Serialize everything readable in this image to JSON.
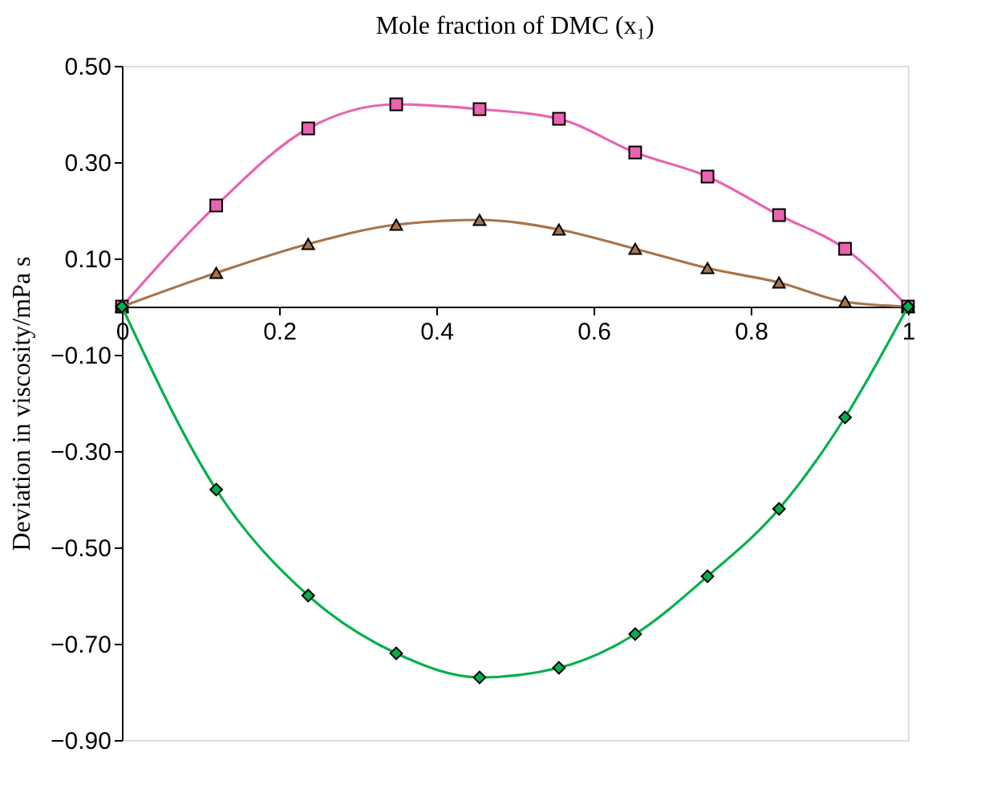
{
  "chart_data": {
    "type": "line",
    "xlabel": "Mole fraction of DMC (x₁)",
    "ylabel": "Deviation in viscosity/mPa s",
    "x": [
      0,
      0.12,
      0.237,
      0.349,
      0.455,
      0.556,
      0.653,
      0.745,
      0.836,
      0.92,
      1
    ],
    "series": [
      {
        "color": "#e864ae",
        "marker": "square",
        "values": [
          0,
          0.21,
          0.37,
          0.42,
          0.41,
          0.39,
          0.32,
          0.27,
          0.19,
          0.12,
          0
        ]
      },
      {
        "color": "#a8744a",
        "marker": "triangle",
        "values": [
          0,
          0.07,
          0.13,
          0.17,
          0.18,
          0.16,
          0.12,
          0.08,
          0.05,
          0.01,
          0
        ]
      },
      {
        "color": "#00b04c",
        "marker": "diamond",
        "values": [
          0,
          -0.38,
          -0.6,
          -0.72,
          -0.77,
          -0.75,
          -0.68,
          -0.56,
          -0.42,
          -0.23,
          0
        ]
      }
    ],
    "xlim": [
      0,
      1
    ],
    "xticks": [
      0,
      0.2,
      0.4,
      0.6,
      0.8,
      1
    ],
    "ylim": [
      -0.9,
      0.5
    ],
    "yticks": [
      {
        "value": 0.5,
        "label": "0.50"
      },
      {
        "value": 0.3,
        "label": "0.30"
      },
      {
        "value": 0.1,
        "label": "0.10"
      },
      {
        "value": -0.1,
        "label": "−0.10"
      },
      {
        "value": -0.3,
        "label": "−0.30"
      },
      {
        "value": -0.5,
        "label": "−0.50"
      },
      {
        "value": -0.7,
        "label": "−0.70"
      },
      {
        "value": -0.9,
        "label": "−0.90"
      }
    ],
    "grid": false,
    "legend": false,
    "line_style": "solid"
  }
}
